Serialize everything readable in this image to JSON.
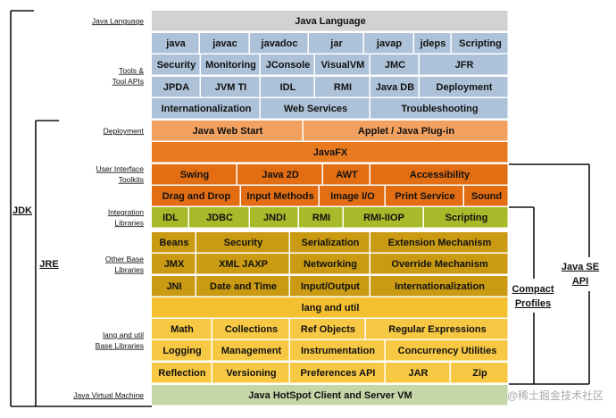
{
  "layers": [
    {
      "label": [
        "Java Language"
      ],
      "rows": [
        [
          "Java Language"
        ]
      ]
    },
    {
      "label": [
        "Tools &",
        "Tool APIs"
      ],
      "rows": [
        [
          "java",
          "javac",
          "javadoc",
          "jar",
          "javap",
          "jdeps",
          "Scripting"
        ],
        [
          "Security",
          "Monitoring",
          "JConsole",
          "VisualVM",
          "JMC",
          "JFR"
        ],
        [
          "JPDA",
          "JVM TI",
          "IDL",
          "RMI",
          "Java DB",
          "Deployment"
        ],
        [
          "Internationalization",
          "Web Services",
          "Troubleshooting"
        ]
      ]
    },
    {
      "label": [
        "Deployment"
      ],
      "rows": [
        [
          "Java Web Start",
          "Applet / Java Plug-in"
        ]
      ]
    },
    {
      "label": [
        "User Interface",
        "Toolkits"
      ],
      "rows": [
        [
          "JavaFX"
        ],
        [
          "Swing",
          "Java 2D",
          "AWT",
          "Accessibility"
        ],
        [
          "Drag and Drop",
          "Input Methods",
          "Image I/O",
          "Print Service",
          "Sound"
        ]
      ]
    },
    {
      "label": [
        "Integration",
        "Libraries"
      ],
      "rows": [
        [
          "IDL",
          "JDBC",
          "JNDI",
          "RMI",
          "RMI-IIOP",
          "Scripting"
        ]
      ]
    },
    {
      "label": [
        "Other Base",
        "Libraries"
      ],
      "rows": [
        [
          "Beans",
          "Security",
          "Serialization",
          "Extension Mechanism"
        ],
        [
          "JMX",
          "XML JAXP",
          "Networking",
          "Override Mechanism"
        ],
        [
          "JNI",
          "Date and Time",
          "Input/Output",
          "Internationalization"
        ]
      ]
    },
    {
      "label": [
        "lang and util",
        "Base Libraries"
      ],
      "rows": [
        [
          "lang and util"
        ],
        [
          "Math",
          "Collections",
          "Ref Objects",
          "Regular Expressions"
        ],
        [
          "Logging",
          "Management",
          "Instrumentation",
          "Concurrency Utilities"
        ],
        [
          "Reflection",
          "Versioning",
          "Preferences API",
          "JAR",
          "Zip"
        ]
      ]
    },
    {
      "label": [
        "Java Virtual Machine"
      ],
      "rows": [
        [
          "Java HotSpot Client and Server VM"
        ]
      ]
    }
  ],
  "brackets": {
    "jdk": "JDK",
    "jre": "JRE",
    "compact": [
      "Compact",
      "Profiles"
    ],
    "se_api": [
      "Java SE",
      "API"
    ]
  },
  "watermark": "@稀土掘金技术社区"
}
